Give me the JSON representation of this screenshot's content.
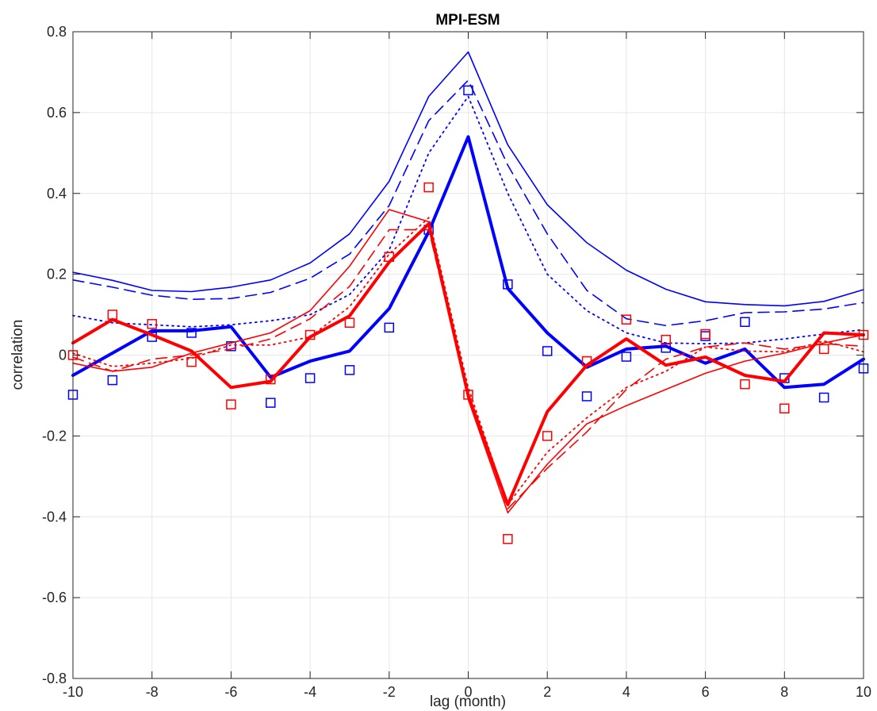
{
  "chart_data": {
    "type": "line",
    "title": "MPI-ESM",
    "xlabel": "lag (month)",
    "ylabel": "correlation",
    "xlim": [
      -10,
      10
    ],
    "ylim": [
      -0.8,
      0.8
    ],
    "grid": true,
    "x_ticks": [
      "-10",
      "-8",
      "-6",
      "-4",
      "-2",
      "0",
      "2",
      "4",
      "6",
      "8",
      "10"
    ],
    "y_ticks": [
      "-0.8",
      "-0.6",
      "-0.4",
      "-0.2",
      "0",
      "0.2",
      "0.4",
      "0.6",
      "0.8"
    ],
    "x": [
      -10,
      -9,
      -8,
      -7,
      -6,
      -5,
      -4,
      -3,
      -2,
      -1,
      0,
      1,
      2,
      3,
      4,
      5,
      6,
      7,
      8,
      9,
      10
    ],
    "series": [
      {
        "color": "#0000ff",
        "style": "thin-solid",
        "values": [
          0.205,
          0.185,
          0.16,
          0.157,
          0.168,
          0.186,
          0.228,
          0.3,
          0.43,
          0.64,
          0.75,
          0.52,
          0.372,
          0.278,
          0.21,
          0.163,
          0.132,
          0.125,
          0.122,
          0.133,
          0.162
        ]
      },
      {
        "color": "#0000ff",
        "style": "dashed",
        "values": [
          0.186,
          0.168,
          0.148,
          0.138,
          0.14,
          0.155,
          0.19,
          0.25,
          0.37,
          0.58,
          0.68,
          0.47,
          0.3,
          0.16,
          0.09,
          0.073,
          0.085,
          0.105,
          0.107,
          0.114,
          0.13
        ]
      },
      {
        "color": "#0000ff",
        "style": "dotted",
        "values": [
          0.098,
          0.08,
          0.075,
          0.07,
          0.075,
          0.085,
          0.1,
          0.15,
          0.26,
          0.5,
          0.64,
          0.4,
          0.2,
          0.11,
          0.055,
          0.03,
          0.028,
          0.03,
          0.04,
          0.052,
          0.063
        ]
      },
      {
        "color": "#0000ff",
        "style": "thick-solid",
        "values": [
          -0.05,
          0.005,
          0.06,
          0.06,
          0.07,
          -0.055,
          -0.015,
          0.01,
          0.115,
          0.305,
          0.54,
          0.165,
          0.055,
          -0.03,
          0.015,
          0.022,
          -0.02,
          0.015,
          -0.08,
          -0.072,
          -0.01
        ]
      },
      {
        "color": "#0000ff",
        "style": "markers",
        "values": [
          -0.098,
          -0.062,
          0.045,
          0.055,
          0.022,
          -0.118,
          -0.057,
          -0.037,
          0.068,
          0.31,
          0.655,
          0.175,
          0.01,
          -0.102,
          -0.004,
          0.018,
          0.047,
          0.082,
          -0.057,
          -0.105,
          -0.033
        ]
      },
      {
        "color": "#ff0000",
        "style": "thin-solid",
        "values": [
          -0.02,
          -0.04,
          -0.03,
          0.005,
          0.03,
          0.055,
          0.11,
          0.22,
          0.36,
          0.33,
          -0.11,
          -0.39,
          -0.27,
          -0.17,
          -0.125,
          -0.085,
          -0.045,
          -0.015,
          0.005,
          0.03,
          0.05
        ]
      },
      {
        "color": "#ff0000",
        "style": "dashed",
        "values": [
          -0.005,
          -0.04,
          -0.01,
          0.0,
          0.015,
          0.04,
          0.09,
          0.17,
          0.31,
          0.31,
          -0.1,
          -0.38,
          -0.28,
          -0.19,
          -0.085,
          -0.01,
          0.02,
          0.03,
          0.015,
          0.028,
          0.022
        ]
      },
      {
        "color": "#ff0000",
        "style": "dotted",
        "values": [
          0.005,
          -0.028,
          -0.02,
          -0.008,
          0.025,
          0.025,
          0.045,
          0.12,
          0.25,
          0.34,
          -0.08,
          -0.37,
          -0.24,
          -0.155,
          -0.08,
          -0.04,
          0.02,
          0.01,
          0.008,
          0.035,
          0.008
        ]
      },
      {
        "color": "#ff0000",
        "style": "thick-solid",
        "values": [
          0.03,
          0.088,
          0.05,
          0.01,
          -0.08,
          -0.065,
          0.045,
          0.097,
          0.23,
          0.325,
          -0.1,
          -0.37,
          -0.14,
          -0.025,
          0.04,
          -0.025,
          -0.005,
          -0.05,
          -0.065,
          0.055,
          0.05
        ]
      },
      {
        "color": "#ff0000",
        "style": "markers",
        "values": [
          0.0,
          0.1,
          0.077,
          -0.017,
          -0.122,
          -0.06,
          0.05,
          0.08,
          0.243,
          0.415,
          -0.098,
          -0.455,
          -0.2,
          -0.015,
          0.088,
          0.038,
          0.052,
          -0.072,
          -0.132,
          0.015,
          0.05
        ]
      }
    ]
  }
}
